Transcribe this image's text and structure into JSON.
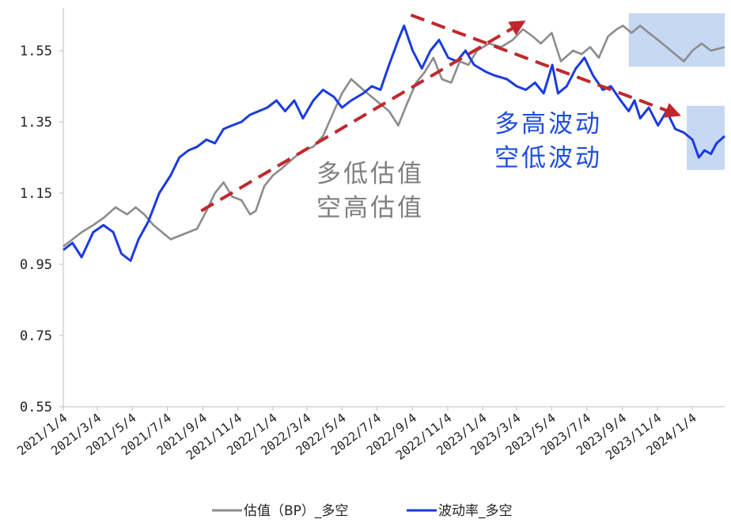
{
  "chart_data": {
    "type": "line",
    "title": "",
    "xlabel": "",
    "ylabel": "",
    "ylim": [
      0.55,
      1.67
    ],
    "yticks": [
      0.55,
      0.75,
      0.95,
      1.15,
      1.35,
      1.55
    ],
    "ytick_labels": [
      "0.55",
      "0.75",
      "0.95",
      "1.15",
      "1.35",
      "1.55"
    ],
    "xlim": [
      "2021-01-04",
      "2024-02-29"
    ],
    "xticks": [
      "2021/1/4",
      "2021/3/4",
      "2021/5/4",
      "2021/7/4",
      "2021/9/4",
      "2021/11/4",
      "2022/1/4",
      "2022/3/4",
      "2022/5/4",
      "2022/7/4",
      "2022/9/4",
      "2022/11/4",
      "2023/1/4",
      "2023/3/4",
      "2023/5/4",
      "2023/7/4",
      "2023/9/4",
      "2023/11/4",
      "2024/1/4"
    ],
    "grid": false,
    "legend_position": "bottom",
    "series": [
      {
        "name": "估值（BP）_多空",
        "color": "#8c8c8c",
        "points": [
          [
            "2021-01-04",
            1.0
          ],
          [
            "2021-01-20",
            1.02
          ],
          [
            "2021-02-05",
            1.04
          ],
          [
            "2021-02-25",
            1.06
          ],
          [
            "2021-03-15",
            1.08
          ],
          [
            "2021-04-05",
            1.11
          ],
          [
            "2021-04-25",
            1.09
          ],
          [
            "2021-05-10",
            1.11
          ],
          [
            "2021-05-25",
            1.09
          ],
          [
            "2021-06-10",
            1.06
          ],
          [
            "2021-06-25",
            1.04
          ],
          [
            "2021-07-10",
            1.02
          ],
          [
            "2021-07-25",
            1.03
          ],
          [
            "2021-08-10",
            1.04
          ],
          [
            "2021-08-25",
            1.05
          ],
          [
            "2021-09-10",
            1.1
          ],
          [
            "2021-09-25",
            1.15
          ],
          [
            "2021-10-10",
            1.18
          ],
          [
            "2021-10-25",
            1.14
          ],
          [
            "2021-11-10",
            1.13
          ],
          [
            "2021-11-25",
            1.09
          ],
          [
            "2021-12-05",
            1.1
          ],
          [
            "2021-12-20",
            1.17
          ],
          [
            "2022-01-04",
            1.2
          ],
          [
            "2022-01-20",
            1.22
          ],
          [
            "2022-02-10",
            1.25
          ],
          [
            "2022-02-25",
            1.27
          ],
          [
            "2022-03-15",
            1.28
          ],
          [
            "2022-04-01",
            1.31
          ],
          [
            "2022-04-20",
            1.38
          ],
          [
            "2022-05-04",
            1.43
          ],
          [
            "2022-05-20",
            1.47
          ],
          [
            "2022-06-10",
            1.44
          ],
          [
            "2022-06-25",
            1.42
          ],
          [
            "2022-07-10",
            1.4
          ],
          [
            "2022-07-25",
            1.38
          ],
          [
            "2022-08-10",
            1.34
          ],
          [
            "2022-08-25",
            1.4
          ],
          [
            "2022-09-10",
            1.46
          ],
          [
            "2022-09-25",
            1.49
          ],
          [
            "2022-10-10",
            1.53
          ],
          [
            "2022-10-25",
            1.47
          ],
          [
            "2022-11-10",
            1.46
          ],
          [
            "2022-11-25",
            1.52
          ],
          [
            "2022-12-10",
            1.51
          ],
          [
            "2022-12-25",
            1.55
          ],
          [
            "2023-01-15",
            1.57
          ],
          [
            "2023-02-05",
            1.56
          ],
          [
            "2023-02-25",
            1.58
          ],
          [
            "2023-03-15",
            1.61
          ],
          [
            "2023-04-01",
            1.59
          ],
          [
            "2023-04-15",
            1.57
          ],
          [
            "2023-05-04",
            1.6
          ],
          [
            "2023-05-20",
            1.52
          ],
          [
            "2023-06-10",
            1.55
          ],
          [
            "2023-06-25",
            1.54
          ],
          [
            "2023-07-10",
            1.56
          ],
          [
            "2023-07-25",
            1.53
          ],
          [
            "2023-08-10",
            1.59
          ],
          [
            "2023-08-25",
            1.61
          ],
          [
            "2023-09-05",
            1.62
          ],
          [
            "2023-09-20",
            1.6
          ],
          [
            "2023-10-05",
            1.62
          ],
          [
            "2023-10-20",
            1.6
          ],
          [
            "2023-11-05",
            1.58
          ],
          [
            "2023-11-20",
            1.56
          ],
          [
            "2023-12-05",
            1.54
          ],
          [
            "2023-12-20",
            1.52
          ],
          [
            "2024-01-04",
            1.55
          ],
          [
            "2024-01-20",
            1.57
          ],
          [
            "2024-02-05",
            1.55
          ],
          [
            "2024-02-29",
            1.56
          ]
        ]
      },
      {
        "name": "波动率_多空",
        "color": "#1a3be0",
        "points": [
          [
            "2021-01-04",
            0.99
          ],
          [
            "2021-01-20",
            1.01
          ],
          [
            "2021-02-05",
            0.97
          ],
          [
            "2021-02-25",
            1.04
          ],
          [
            "2021-03-15",
            1.06
          ],
          [
            "2021-04-01",
            1.04
          ],
          [
            "2021-04-15",
            0.98
          ],
          [
            "2021-05-01",
            0.96
          ],
          [
            "2021-05-15",
            1.02
          ],
          [
            "2021-06-01",
            1.07
          ],
          [
            "2021-06-20",
            1.15
          ],
          [
            "2021-07-10",
            1.2
          ],
          [
            "2021-07-25",
            1.25
          ],
          [
            "2021-08-10",
            1.27
          ],
          [
            "2021-08-25",
            1.28
          ],
          [
            "2021-09-10",
            1.3
          ],
          [
            "2021-09-25",
            1.29
          ],
          [
            "2021-10-10",
            1.33
          ],
          [
            "2021-10-25",
            1.34
          ],
          [
            "2021-11-10",
            1.35
          ],
          [
            "2021-11-25",
            1.37
          ],
          [
            "2021-12-10",
            1.38
          ],
          [
            "2021-12-25",
            1.39
          ],
          [
            "2022-01-10",
            1.41
          ],
          [
            "2022-01-25",
            1.38
          ],
          [
            "2022-02-10",
            1.41
          ],
          [
            "2022-02-25",
            1.36
          ],
          [
            "2022-03-15",
            1.41
          ],
          [
            "2022-04-01",
            1.44
          ],
          [
            "2022-04-20",
            1.42
          ],
          [
            "2022-05-04",
            1.39
          ],
          [
            "2022-05-20",
            1.41
          ],
          [
            "2022-06-10",
            1.43
          ],
          [
            "2022-06-25",
            1.45
          ],
          [
            "2022-07-10",
            1.44
          ],
          [
            "2022-07-25",
            1.51
          ],
          [
            "2022-08-10",
            1.58
          ],
          [
            "2022-08-20",
            1.62
          ],
          [
            "2022-09-04",
            1.55
          ],
          [
            "2022-09-20",
            1.5
          ],
          [
            "2022-10-05",
            1.55
          ],
          [
            "2022-10-20",
            1.58
          ],
          [
            "2022-11-05",
            1.53
          ],
          [
            "2022-11-20",
            1.52
          ],
          [
            "2022-12-05",
            1.55
          ],
          [
            "2022-12-20",
            1.51
          ],
          [
            "2023-01-10",
            1.49
          ],
          [
            "2023-01-25",
            1.48
          ],
          [
            "2023-02-15",
            1.47
          ],
          [
            "2023-03-04",
            1.45
          ],
          [
            "2023-03-20",
            1.44
          ],
          [
            "2023-04-05",
            1.46
          ],
          [
            "2023-04-20",
            1.43
          ],
          [
            "2023-05-05",
            1.51
          ],
          [
            "2023-05-15",
            1.43
          ],
          [
            "2023-05-30",
            1.45
          ],
          [
            "2023-06-15",
            1.5
          ],
          [
            "2023-06-30",
            1.53
          ],
          [
            "2023-07-15",
            1.48
          ],
          [
            "2023-08-01",
            1.44
          ],
          [
            "2023-08-15",
            1.45
          ],
          [
            "2023-09-01",
            1.41
          ],
          [
            "2023-09-15",
            1.38
          ],
          [
            "2023-09-25",
            1.41
          ],
          [
            "2023-10-05",
            1.36
          ],
          [
            "2023-10-20",
            1.39
          ],
          [
            "2023-11-05",
            1.34
          ],
          [
            "2023-11-20",
            1.38
          ],
          [
            "2023-12-05",
            1.33
          ],
          [
            "2023-12-20",
            1.32
          ],
          [
            "2024-01-04",
            1.3
          ],
          [
            "2024-01-15",
            1.25
          ],
          [
            "2024-01-25",
            1.27
          ],
          [
            "2024-02-05",
            1.26
          ],
          [
            "2024-02-15",
            1.29
          ],
          [
            "2024-02-29",
            1.31
          ]
        ]
      }
    ],
    "annotations": [
      {
        "lines": [
          "多低估值",
          "空高估值"
        ],
        "color": "#7f7f7f"
      },
      {
        "lines": [
          "多高波动",
          "空低波动"
        ],
        "color": "#1f4ee0"
      }
    ],
    "arrow_color": "#c0282d",
    "highlight_color": "#c6d8f2",
    "legend": [
      "估值（BP）_多空",
      "波动率_多空"
    ]
  }
}
